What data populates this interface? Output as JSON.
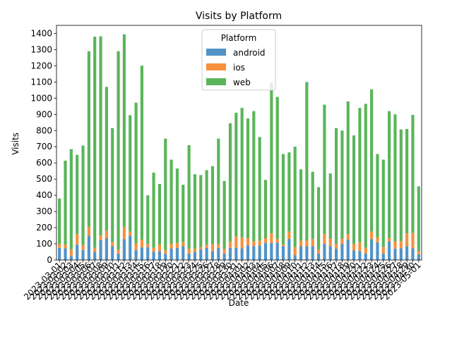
{
  "chart_data": {
    "type": "bar",
    "stacked": true,
    "title": "Visits by Platform",
    "xlabel": "Date",
    "ylabel": "Visits",
    "ylim": [
      0,
      1450
    ],
    "yticks": [
      0,
      100,
      200,
      300,
      400,
      500,
      600,
      700,
      800,
      900,
      1000,
      1100,
      1200,
      1300,
      1400
    ],
    "grid": false,
    "legend": {
      "title": "Platform",
      "placement": "top-center"
    },
    "categories": [
      "2023-03-01",
      "2023-03-02",
      "2023-03-03",
      "2023-03-04",
      "2023-03-05",
      "2023-03-06",
      "2023-03-07",
      "2023-03-08",
      "2023-03-09",
      "2023-03-10",
      "2023-03-11",
      "2023-03-12",
      "2023-03-13",
      "2023-03-14",
      "2023-03-15",
      "2023-03-16",
      "2023-03-17",
      "2023-03-18",
      "2023-03-19",
      "2023-03-20",
      "2023-03-21",
      "2023-03-22",
      "2023-03-23",
      "2023-03-24",
      "2023-03-25",
      "2023-03-26",
      "2023-03-27",
      "2023-03-28",
      "2023-03-29",
      "2023-03-30",
      "2023-03-31",
      "2023-04-01",
      "2023-04-02",
      "2023-04-03",
      "2023-04-04",
      "2023-04-05",
      "2023-04-06",
      "2023-04-07",
      "2023-04-08",
      "2023-04-09",
      "2023-04-10",
      "2023-04-11",
      "2023-04-12",
      "2023-04-13",
      "2023-04-14",
      "2023-04-15",
      "2023-04-16",
      "2023-04-17",
      "2023-04-18",
      "2023-04-19",
      "2023-04-20",
      "2023-04-21",
      "2023-04-22",
      "2023-04-23",
      "2023-04-24",
      "2023-04-25",
      "2023-04-26",
      "2023-04-27",
      "2023-04-28",
      "2023-04-29",
      "2023-04-30",
      "2023-05-01"
    ],
    "series": [
      {
        "name": "android",
        "color": "#5193c7",
        "values": [
          75,
          72,
          25,
          95,
          62,
          150,
          50,
          122,
          135,
          85,
          40,
          130,
          150,
          62,
          78,
          80,
          50,
          55,
          38,
          70,
          75,
          85,
          40,
          50,
          65,
          75,
          55,
          75,
          40,
          75,
          75,
          72,
          90,
          85,
          90,
          105,
          105,
          108,
          85,
          130,
          30,
          85,
          85,
          85,
          40,
          100,
          85,
          70,
          100,
          125,
          60,
          55,
          40,
          130,
          110,
          40,
          115,
          70,
          72,
          85,
          72,
          35
        ]
      },
      {
        "name": "ios",
        "color": "#f7913d",
        "values": [
          25,
          22,
          40,
          65,
          30,
          55,
          25,
          30,
          45,
          25,
          25,
          75,
          25,
          40,
          48,
          20,
          25,
          40,
          22,
          30,
          30,
          25,
          30,
          20,
          15,
          20,
          45,
          25,
          28,
          40,
          70,
          68,
          45,
          30,
          30,
          30,
          60,
          20,
          10,
          45,
          50,
          35,
          35,
          45,
          25,
          60,
          45,
          30,
          30,
          35,
          40,
          55,
          35,
          45,
          30,
          40,
          20,
          45,
          45,
          80,
          95,
          20
        ]
      },
      {
        "name": "web",
        "color": "#5ab55a",
        "values": [
          280,
          520,
          620,
          490,
          615,
          1085,
          1305,
          1230,
          890,
          705,
          1225,
          1190,
          720,
          870,
          1075,
          300,
          465,
          375,
          690,
          520,
          460,
          355,
          640,
          460,
          445,
          460,
          480,
          650,
          420,
          730,
          765,
          800,
          740,
          805,
          640,
          360,
          930,
          880,
          560,
          490,
          620,
          440,
          980,
          415,
          385,
          800,
          405,
          715,
          670,
          820,
          670,
          830,
          890,
          880,
          515,
          540,
          785,
          785,
          690,
          645,
          730,
          400
        ]
      }
    ]
  }
}
